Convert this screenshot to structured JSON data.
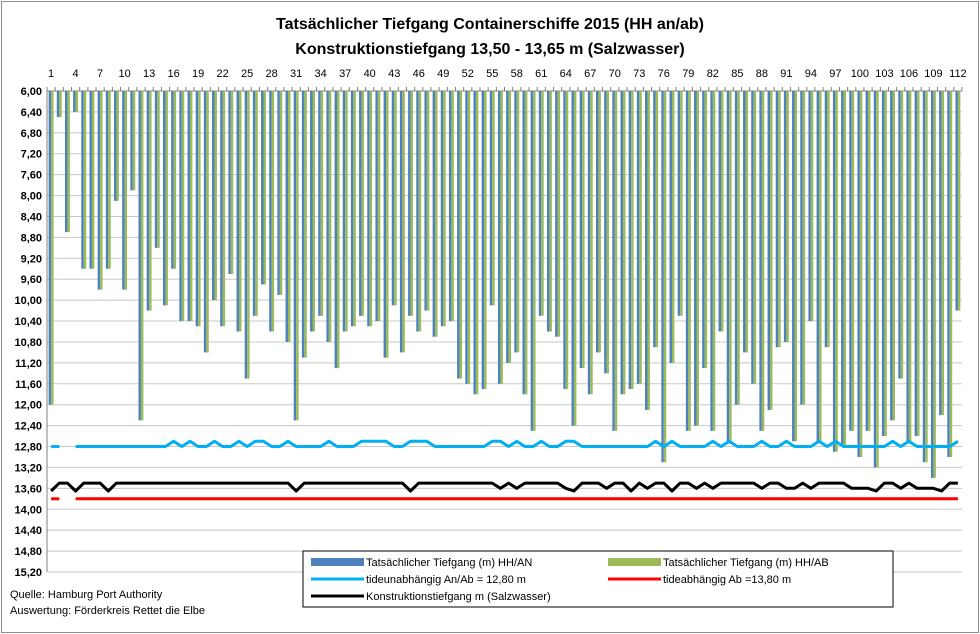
{
  "chart_data": {
    "type": "bar",
    "title": "Tatsächlicher  Tiefgang Containerschiffe  2015 (HH an/ab)",
    "subtitle": "Konstruktionstiefgang   13,50 - 13,65 m  (Salzwasser)",
    "xlabel": "",
    "ylabel": "",
    "y_inverted": true,
    "ylim": [
      6.0,
      15.2
    ],
    "y_ticks": [
      "6,00",
      "6,40",
      "6,80",
      "7,20",
      "7,60",
      "8,00",
      "8,40",
      "8,80",
      "9,20",
      "9,60",
      "10,00",
      "10,40",
      "10,80",
      "11,20",
      "11,60",
      "12,00",
      "12,40",
      "12,80",
      "13,20",
      "13,60",
      "14,00",
      "14,40",
      "14,80",
      "15,20"
    ],
    "x_ticks": [
      "1",
      "4",
      "7",
      "10",
      "13",
      "16",
      "19",
      "22",
      "25",
      "28",
      "31",
      "34",
      "37",
      "40",
      "43",
      "46",
      "49",
      "52",
      "55",
      "58",
      "61",
      "64",
      "67",
      "70",
      "73",
      "76",
      "79",
      "82",
      "85",
      "88",
      "91",
      "94",
      "97",
      "100",
      "103",
      "106",
      "109",
      "112"
    ],
    "grid": "horizontal",
    "legend_position": "bottom-center",
    "series": [
      {
        "name": "Tatsächlicher Tiefgang (m) HH/AN",
        "kind": "bar",
        "color": "#4f81bd",
        "values": [
          12.0,
          6.5,
          8.7,
          6.4,
          9.4,
          9.4,
          9.8,
          9.4,
          8.1,
          9.8,
          7.9,
          12.3,
          10.2,
          9.0,
          10.1,
          9.4,
          10.4,
          10.4,
          10.5,
          11.0,
          10.0,
          10.5,
          9.5,
          10.6,
          11.5,
          10.3,
          9.7,
          10.6,
          9.9,
          10.8,
          12.3,
          11.1,
          10.6,
          10.3,
          10.8,
          11.3,
          10.6,
          10.5,
          10.3,
          10.5,
          10.4,
          11.1,
          10.1,
          11.0,
          10.3,
          10.6,
          10.2,
          10.7,
          10.5,
          10.4,
          11.5,
          11.6,
          11.8,
          11.7,
          10.1,
          11.6,
          11.2,
          11.0,
          11.8,
          12.5,
          10.3,
          10.6,
          10.7,
          11.7,
          12.4,
          11.3,
          11.8,
          11.0,
          11.4,
          12.5,
          11.8,
          11.7,
          11.6,
          12.1,
          10.9,
          13.1,
          11.2,
          10.3,
          12.5,
          12.4,
          11.3,
          12.5,
          10.6,
          12.7,
          12.0,
          11.0,
          11.6,
          12.5,
          12.1,
          10.9,
          10.8,
          12.7,
          12.0,
          10.4,
          12.7,
          10.9,
          12.9,
          12.8,
          12.5,
          13.0,
          12.5,
          13.2,
          12.6,
          12.3,
          11.5,
          12.7,
          12.6,
          13.1,
          13.4,
          12.2,
          13.0,
          10.2
        ]
      },
      {
        "name": "Tatsächlicher Tiefgang (m) HH/AB",
        "kind": "bar",
        "color": "#9bbb59",
        "values": [
          12.0,
          6.5,
          8.7,
          6.4,
          9.4,
          9.4,
          9.8,
          9.4,
          8.1,
          9.8,
          7.9,
          12.3,
          10.2,
          9.0,
          10.1,
          9.4,
          10.4,
          10.4,
          10.5,
          11.0,
          10.0,
          10.5,
          9.5,
          10.6,
          11.5,
          10.3,
          9.7,
          10.6,
          9.9,
          10.8,
          12.3,
          11.1,
          10.6,
          10.3,
          10.8,
          11.3,
          10.6,
          10.5,
          10.3,
          10.5,
          10.4,
          11.1,
          10.1,
          11.0,
          10.3,
          10.6,
          10.2,
          10.7,
          10.5,
          10.4,
          11.5,
          11.6,
          11.8,
          11.7,
          10.1,
          11.6,
          11.2,
          11.0,
          11.8,
          12.5,
          10.3,
          10.6,
          10.7,
          11.7,
          12.4,
          11.3,
          11.8,
          11.0,
          11.4,
          12.5,
          11.8,
          11.7,
          11.6,
          12.1,
          10.9,
          13.1,
          11.2,
          10.3,
          12.5,
          12.4,
          11.3,
          12.5,
          10.6,
          12.7,
          12.0,
          11.0,
          11.6,
          12.5,
          12.1,
          10.9,
          10.8,
          12.7,
          12.0,
          10.4,
          12.7,
          10.9,
          12.9,
          12.8,
          12.5,
          13.0,
          12.5,
          13.2,
          12.6,
          12.3,
          11.5,
          12.7,
          12.6,
          13.1,
          13.4,
          12.2,
          13.0,
          10.2
        ]
      },
      {
        "name": "tideunabhängig An/Ab = 12,80 m",
        "kind": "line",
        "color": "#00b0f0",
        "values": [
          12.8,
          12.8,
          null,
          12.8,
          12.8,
          12.8,
          12.8,
          12.8,
          12.8,
          12.8,
          12.8,
          12.8,
          12.8,
          12.8,
          12.8,
          12.7,
          12.8,
          12.7,
          12.8,
          12.8,
          12.7,
          12.8,
          12.8,
          12.7,
          12.8,
          12.7,
          12.7,
          12.8,
          12.8,
          12.7,
          12.8,
          12.8,
          12.8,
          12.8,
          12.7,
          12.8,
          12.8,
          12.8,
          12.7,
          12.7,
          12.7,
          12.7,
          12.8,
          12.8,
          12.7,
          12.7,
          12.7,
          12.8,
          12.8,
          12.8,
          12.8,
          12.8,
          12.8,
          12.8,
          12.7,
          12.7,
          12.8,
          12.7,
          12.8,
          12.8,
          12.7,
          12.8,
          12.8,
          12.7,
          12.7,
          12.8,
          12.8,
          12.8,
          12.8,
          12.8,
          12.8,
          12.8,
          12.8,
          12.8,
          12.7,
          12.8,
          12.7,
          12.8,
          12.8,
          12.8,
          12.8,
          12.7,
          12.8,
          12.7,
          12.8,
          12.8,
          12.8,
          12.7,
          12.8,
          12.8,
          12.7,
          12.8,
          12.8,
          12.8,
          12.7,
          12.8,
          12.7,
          12.8,
          12.8,
          12.8,
          12.8,
          12.8,
          12.8,
          12.7,
          12.8,
          12.7,
          12.8,
          12.8,
          12.8,
          12.8,
          12.8,
          12.7
        ]
      },
      {
        "name": "tideabhängig Ab =13,80 m",
        "kind": "line",
        "color": "#ff0000",
        "values": [
          13.8,
          13.8,
          null,
          13.8,
          13.8,
          13.8,
          13.8,
          13.8,
          13.8,
          13.8,
          13.8,
          13.8,
          13.8,
          13.8,
          13.8,
          13.8,
          13.8,
          13.8,
          13.8,
          13.8,
          13.8,
          13.8,
          13.8,
          13.8,
          13.8,
          13.8,
          13.8,
          13.8,
          13.8,
          13.8,
          13.8,
          13.8,
          13.8,
          13.8,
          13.8,
          13.8,
          13.8,
          13.8,
          13.8,
          13.8,
          13.8,
          13.8,
          13.8,
          13.8,
          13.8,
          13.8,
          13.8,
          13.8,
          13.8,
          13.8,
          13.8,
          13.8,
          13.8,
          13.8,
          13.8,
          13.8,
          13.8,
          13.8,
          13.8,
          13.8,
          13.8,
          13.8,
          13.8,
          13.8,
          13.8,
          13.8,
          13.8,
          13.8,
          13.8,
          13.8,
          13.8,
          13.8,
          13.8,
          13.8,
          13.8,
          13.8,
          13.8,
          13.8,
          13.8,
          13.8,
          13.8,
          13.8,
          13.8,
          13.8,
          13.8,
          13.8,
          13.8,
          13.8,
          13.8,
          13.8,
          13.8,
          13.8,
          13.8,
          13.8,
          13.8,
          13.8,
          13.8,
          13.8,
          13.8,
          13.8,
          13.8,
          13.8,
          13.8,
          13.8,
          13.8,
          13.8,
          13.8,
          13.8,
          13.8,
          13.8,
          13.8,
          13.8
        ]
      },
      {
        "name": "Konstruktionstiefgang  m (Salzwasser)",
        "kind": "line",
        "color": "#000000",
        "values": [
          13.65,
          13.5,
          13.5,
          13.65,
          13.5,
          13.5,
          13.5,
          13.65,
          13.5,
          13.5,
          13.5,
          13.5,
          13.5,
          13.5,
          13.5,
          13.5,
          13.5,
          13.5,
          13.5,
          13.5,
          13.5,
          13.5,
          13.5,
          13.5,
          13.5,
          13.5,
          13.5,
          13.5,
          13.5,
          13.5,
          13.65,
          13.5,
          13.5,
          13.5,
          13.5,
          13.5,
          13.5,
          13.5,
          13.5,
          13.5,
          13.5,
          13.5,
          13.5,
          13.5,
          13.65,
          13.5,
          13.5,
          13.5,
          13.5,
          13.5,
          13.5,
          13.5,
          13.5,
          13.5,
          13.5,
          13.6,
          13.5,
          13.6,
          13.5,
          13.5,
          13.5,
          13.5,
          13.5,
          13.6,
          13.65,
          13.5,
          13.5,
          13.5,
          13.6,
          13.5,
          13.5,
          13.65,
          13.5,
          13.6,
          13.5,
          13.5,
          13.65,
          13.5,
          13.5,
          13.6,
          13.5,
          13.6,
          13.5,
          13.5,
          13.5,
          13.5,
          13.5,
          13.6,
          13.5,
          13.5,
          13.6,
          13.6,
          13.5,
          13.6,
          13.5,
          13.5,
          13.5,
          13.5,
          13.6,
          13.6,
          13.6,
          13.65,
          13.5,
          13.5,
          13.6,
          13.5,
          13.6,
          13.6,
          13.6,
          13.65,
          13.5,
          13.5
        ]
      }
    ]
  },
  "source": {
    "line1": "Quelle: Hamburg Port Authority",
    "line2": "Auswertung: Förderkreis Rettet die Elbe"
  }
}
